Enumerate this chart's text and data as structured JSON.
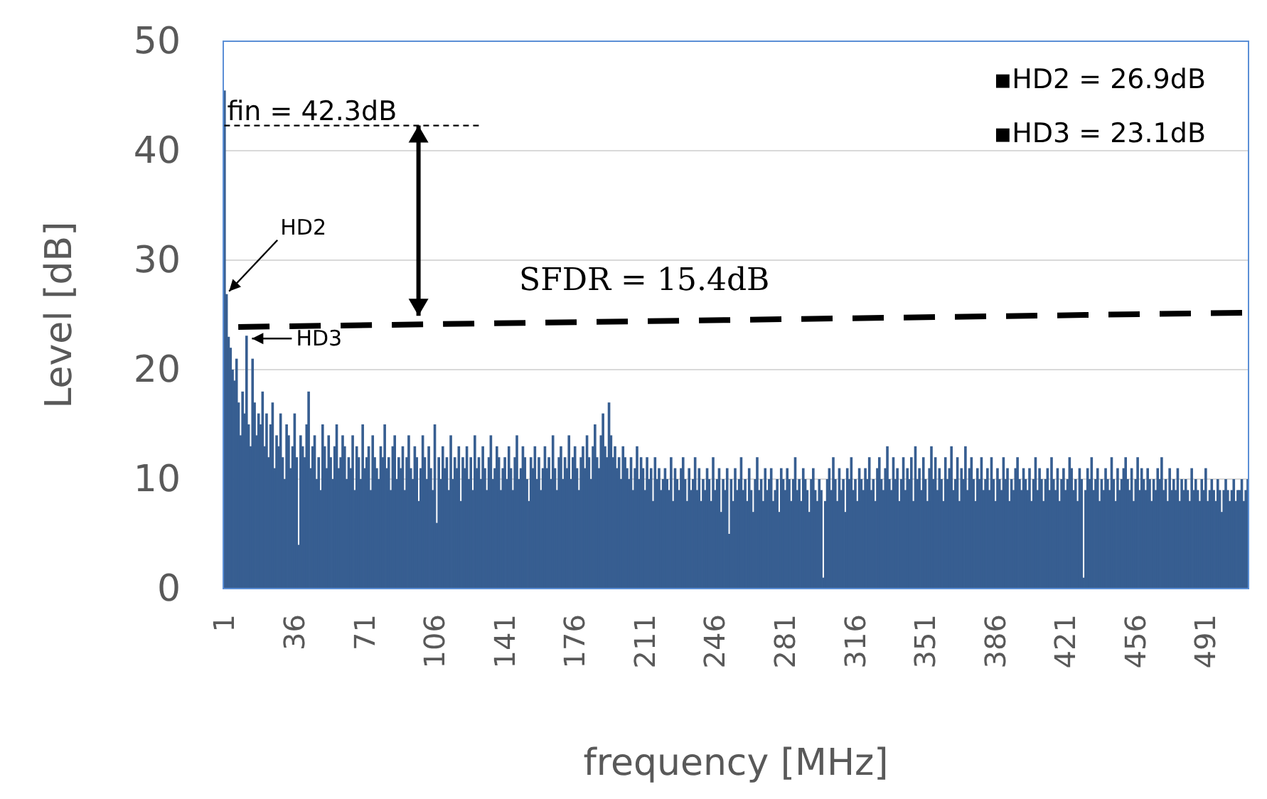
{
  "chart_data": {
    "type": "bar",
    "xlabel": "frequency [MHz]",
    "ylabel": "Level [dB]",
    "xlim": [
      0.5,
      512.5
    ],
    "xticks": [
      1,
      36,
      71,
      106,
      141,
      176,
      211,
      246,
      281,
      316,
      351,
      386,
      421,
      456,
      491
    ],
    "ylim": [
      0,
      50
    ],
    "yticks": [
      0,
      10,
      20,
      30,
      40,
      50
    ],
    "grid": "y",
    "series": [
      {
        "color": "#375e91",
        "x": [
          1,
          2,
          3,
          4,
          5,
          6,
          7,
          8,
          9,
          10,
          11,
          12,
          13,
          14,
          15,
          16,
          17,
          18,
          19,
          20,
          21,
          22,
          23,
          24,
          25,
          26,
          27,
          28,
          29,
          30,
          31,
          32,
          33,
          34,
          35,
          36,
          37,
          38,
          39,
          40,
          41,
          42,
          43,
          44,
          45,
          46,
          47,
          48,
          49,
          50,
          51,
          52,
          53,
          54,
          55,
          56,
          57,
          58,
          59,
          60,
          61,
          62,
          63,
          64,
          65,
          66,
          67,
          68,
          69,
          70,
          71,
          72,
          73,
          74,
          75,
          76,
          77,
          78,
          79,
          80,
          81,
          82,
          83,
          84,
          85,
          86,
          87,
          88,
          89,
          90,
          91,
          92,
          93,
          94,
          95,
          96,
          97,
          98,
          99,
          100,
          101,
          102,
          103,
          104,
          105,
          106,
          107,
          108,
          109,
          110,
          111,
          112,
          113,
          114,
          115,
          116,
          117,
          118,
          119,
          120,
          121,
          122,
          123,
          124,
          125,
          126,
          127,
          128,
          129,
          130,
          131,
          132,
          133,
          134,
          135,
          136,
          137,
          138,
          139,
          140,
          141,
          142,
          143,
          144,
          145,
          146,
          147,
          148,
          149,
          150,
          151,
          152,
          153,
          154,
          155,
          156,
          157,
          158,
          159,
          160,
          161,
          162,
          163,
          164,
          165,
          166,
          167,
          168,
          169,
          170,
          171,
          172,
          173,
          174,
          175,
          176,
          177,
          178,
          179,
          180,
          181,
          182,
          183,
          184,
          185,
          186,
          187,
          188,
          189,
          190,
          191,
          192,
          193,
          194,
          195,
          196,
          197,
          198,
          199,
          200,
          201,
          202,
          203,
          204,
          205,
          206,
          207,
          208,
          209,
          210,
          211,
          212,
          213,
          214,
          215,
          216,
          217,
          218,
          219,
          220,
          221,
          222,
          223,
          224,
          225,
          226,
          227,
          228,
          229,
          230,
          231,
          232,
          233,
          234,
          235,
          236,
          237,
          238,
          239,
          240,
          241,
          242,
          243,
          244,
          245,
          246,
          247,
          248,
          249,
          250,
          251,
          252,
          253,
          254,
          255,
          256,
          257,
          258,
          259,
          260,
          261,
          262,
          263,
          264,
          265,
          266,
          267,
          268,
          269,
          270,
          271,
          272,
          273,
          274,
          275,
          276,
          277,
          278,
          279,
          280,
          281,
          282,
          283,
          284,
          285,
          286,
          287,
          288,
          289,
          290,
          291,
          292,
          293,
          294,
          295,
          296,
          297,
          298,
          299,
          300,
          301,
          302,
          303,
          304,
          305,
          306,
          307,
          308,
          309,
          310,
          311,
          312,
          313,
          314,
          315,
          316,
          317,
          318,
          319,
          320,
          321,
          322,
          323,
          324,
          325,
          326,
          327,
          328,
          329,
          330,
          331,
          332,
          333,
          334,
          335,
          336,
          337,
          338,
          339,
          340,
          341,
          342,
          343,
          344,
          345,
          346,
          347,
          348,
          349,
          350,
          351,
          352,
          353,
          354,
          355,
          356,
          357,
          358,
          359,
          360,
          361,
          362,
          363,
          364,
          365,
          366,
          367,
          368,
          369,
          370,
          371,
          372,
          373,
          374,
          375,
          376,
          377,
          378,
          379,
          380,
          381,
          382,
          383,
          384,
          385,
          386,
          387,
          388,
          389,
          390,
          391,
          392,
          393,
          394,
          395,
          396,
          397,
          398,
          399,
          400,
          401,
          402,
          403,
          404,
          405,
          406,
          407,
          408,
          409,
          410,
          411,
          412,
          413,
          414,
          415,
          416,
          417,
          418,
          419,
          420,
          421,
          422,
          423,
          424,
          425,
          426,
          427,
          428,
          429,
          430,
          431,
          432,
          433,
          434,
          435,
          436,
          437,
          438,
          439,
          440,
          441,
          442,
          443,
          444,
          445,
          446,
          447,
          448,
          449,
          450,
          451,
          452,
          453,
          454,
          455,
          456,
          457,
          458,
          459,
          460,
          461,
          462,
          463,
          464,
          465,
          466,
          467,
          468,
          469,
          470,
          471,
          472,
          473,
          474,
          475,
          476,
          477,
          478,
          479,
          480,
          481,
          482,
          483,
          484,
          485,
          486,
          487,
          488,
          489,
          490,
          491,
          492,
          493,
          494,
          495,
          496,
          497,
          498,
          499,
          500,
          501,
          502,
          503,
          504,
          505,
          506,
          507,
          508,
          509,
          510,
          511,
          512
        ],
        "values": [
          45.5,
          26.9,
          23,
          22,
          20,
          19,
          21,
          17,
          14,
          18,
          16,
          23.1,
          15,
          13,
          21,
          17,
          14,
          16,
          15,
          18,
          13,
          16,
          12,
          15,
          17,
          11,
          14,
          13,
          16,
          12,
          10,
          15,
          14,
          11,
          13,
          16,
          12,
          4,
          14,
          13,
          12,
          15,
          18,
          11,
          13,
          14,
          10,
          12,
          9,
          15,
          13,
          11,
          14,
          12,
          10,
          13,
          15,
          11,
          12,
          14,
          13,
          10,
          12,
          11,
          14,
          9,
          13,
          12,
          10,
          15,
          11,
          12,
          13,
          9,
          14,
          12,
          11,
          10,
          13,
          12,
          15,
          11,
          12,
          9,
          13,
          14,
          10,
          12,
          11,
          13,
          9,
          12,
          14,
          11,
          10,
          13,
          12,
          8,
          11,
          14,
          12,
          10,
          13,
          11,
          9,
          15,
          6,
          12,
          10,
          13,
          11,
          12,
          9,
          14,
          10,
          12,
          11,
          13,
          8,
          12,
          11,
          13,
          10,
          12,
          9,
          14,
          11,
          12,
          10,
          13,
          11,
          9,
          12,
          14,
          10,
          11,
          13,
          12,
          9,
          11,
          12,
          10,
          13,
          11,
          9,
          12,
          14,
          10,
          11,
          13,
          12,
          10,
          8,
          12,
          11,
          13,
          10,
          12,
          9,
          11,
          13,
          11,
          12,
          10,
          14,
          11,
          9,
          12,
          13,
          10,
          12,
          11,
          14,
          10,
          12,
          13,
          11,
          9,
          12,
          13,
          11,
          14,
          12,
          10,
          13,
          15,
          12,
          11,
          14,
          16,
          13,
          12,
          17,
          14,
          12,
          13,
          11,
          12,
          10,
          13,
          12,
          11,
          10,
          12,
          9,
          11,
          13,
          10,
          12,
          11,
          9,
          12,
          10,
          11,
          8,
          12,
          10,
          11,
          9,
          10,
          11,
          10,
          9,
          12,
          8,
          11,
          10,
          9,
          11,
          12,
          10,
          8,
          11,
          9,
          10,
          12,
          9,
          11,
          8,
          10,
          9,
          11,
          10,
          8,
          12,
          9,
          10,
          11,
          7,
          10,
          9,
          11,
          5,
          10,
          8,
          11,
          9,
          10,
          12,
          9,
          10,
          8,
          11,
          9,
          7,
          10,
          12,
          9,
          10,
          8,
          11,
          9,
          10,
          11,
          8,
          9,
          10,
          7,
          11,
          10,
          9,
          11,
          10,
          8,
          10,
          12,
          9,
          10,
          8,
          11,
          10,
          9,
          7,
          10,
          11,
          9,
          8,
          10,
          9,
          1,
          8,
          10,
          11,
          9,
          12,
          10,
          8,
          11,
          9,
          10,
          7,
          11,
          10,
          12,
          9,
          10,
          8,
          11,
          10,
          9,
          11,
          10,
          12,
          9,
          10,
          8,
          11,
          12,
          10,
          9,
          11,
          13,
          10,
          9,
          12,
          10,
          11,
          8,
          10,
          12,
          9,
          11,
          10,
          12,
          8,
          13,
          10,
          11,
          9,
          12,
          10,
          8,
          11,
          13,
          10,
          12,
          9,
          11,
          10,
          8,
          12,
          10,
          11,
          13,
          9,
          10,
          12,
          8,
          11,
          10,
          13,
          9,
          11,
          12,
          10,
          8,
          11,
          10,
          12,
          9,
          10,
          11,
          9,
          12,
          10,
          8,
          11,
          10,
          9,
          12,
          10,
          11,
          8,
          10,
          9,
          11,
          12,
          10,
          9,
          11,
          10,
          9,
          11,
          8,
          10,
          12,
          9,
          11,
          10,
          8,
          10,
          11,
          9,
          12,
          10,
          9,
          11,
          8,
          10,
          11,
          9,
          10,
          12,
          11,
          9,
          10,
          8,
          11,
          10,
          1,
          9,
          11,
          10,
          12,
          9,
          10,
          11,
          8,
          10,
          9,
          11,
          10,
          9,
          12,
          10,
          8,
          11,
          9,
          10,
          11,
          12,
          10,
          9,
          11,
          8,
          10,
          12,
          9,
          11,
          10,
          9,
          11,
          10,
          8,
          10,
          9,
          11,
          10,
          12,
          9,
          10,
          8,
          11,
          9,
          10,
          9,
          11,
          8,
          10,
          9,
          10,
          9,
          8,
          11,
          9,
          10,
          9,
          8,
          10,
          9,
          11,
          8,
          9,
          10,
          9,
          8,
          10,
          9,
          7,
          9,
          10,
          9,
          8,
          9,
          10,
          8,
          9,
          9,
          10,
          8,
          9,
          10
        ]
      },
      {
        "type": "line",
        "color": "#000000",
        "line_style": "dashed",
        "x": [
          1,
          130
        ],
        "values": [
          42.3,
          42.3
        ]
      },
      {
        "type": "line",
        "color": "#000000",
        "line_style": "dashed",
        "x": [
          8,
          510
        ],
        "values": [
          23.9,
          25.2
        ]
      }
    ],
    "annotations": [
      {
        "text": "fin = 42.3dB",
        "x": 1,
        "y": 42.3
      },
      {
        "text": "HD2",
        "x": 2,
        "y": 26.9
      },
      {
        "text": "HD3",
        "x": 12,
        "y": 23.1
      },
      "SFDR = 15.4dB",
      "▪HD2 = 26.9dB",
      "▪HD3 = 23.1dB"
    ]
  }
}
